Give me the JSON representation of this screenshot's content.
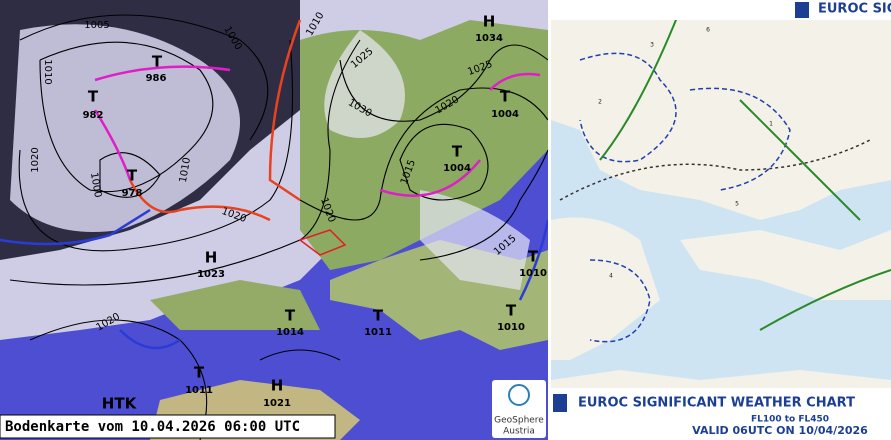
{
  "left_map": {
    "caption": "Bodenkarte vom 10.04.2026 06:00 UTC",
    "logo": [
      "GeoSphere",
      "Austria"
    ],
    "centers": [
      {
        "symbol": "T",
        "value": "986"
      },
      {
        "symbol": "T",
        "value": "982"
      },
      {
        "symbol": "T",
        "value": "978"
      },
      {
        "symbol": "H",
        "value": "1023"
      },
      {
        "symbol": "H",
        "value": "1034"
      },
      {
        "symbol": "T",
        "value": "1004"
      },
      {
        "symbol": "T",
        "value": "1004"
      },
      {
        "symbol": "T",
        "value": "1010"
      },
      {
        "symbol": "T",
        "value": "1010"
      },
      {
        "symbol": "T",
        "value": "1014"
      },
      {
        "symbol": "T",
        "value": "1011"
      },
      {
        "symbol": "T",
        "value": "1011"
      },
      {
        "symbol": "H",
        "value": "1021"
      },
      {
        "symbol": "HTK"
      }
    ],
    "isobar_labels": [
      "1005",
      "1000",
      "1010",
      "1010",
      "1020",
      "1000",
      "1010",
      "1020",
      "1025",
      "1030",
      "1025",
      "1020",
      "1015",
      "1020",
      "1015",
      "1020"
    ]
  },
  "right_map": {
    "header_title": "EUROC SIG",
    "title": "EUROC SIGNIFICANT WEATHER CHART",
    "levels": "FL100 to FL450",
    "valid": "VALID 06UTC ON 10/04/2026",
    "area_numbers": [
      "2",
      "3",
      "6",
      "1",
      "5",
      "4"
    ]
  }
}
